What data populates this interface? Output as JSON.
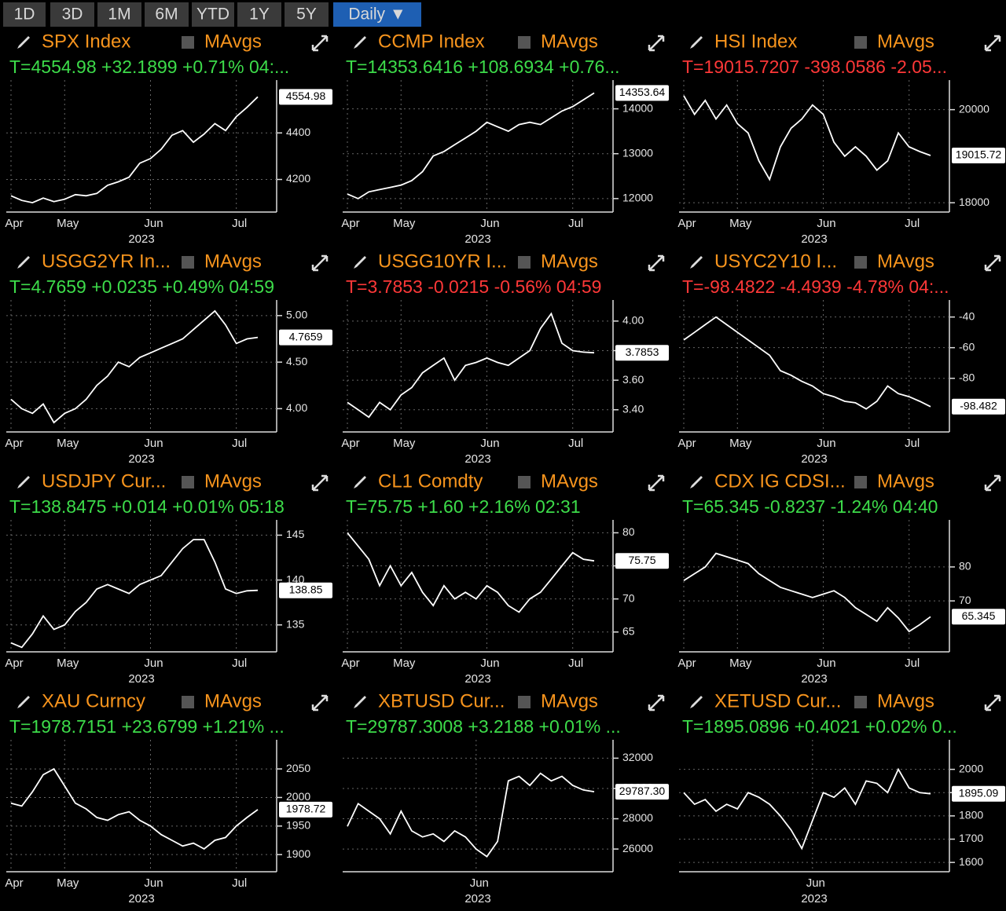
{
  "toolbar": {
    "buttons": [
      "1D",
      "3D",
      "1M",
      "6M",
      "YTD",
      "1Y",
      "5Y",
      "Daily ▼"
    ]
  },
  "panels": [
    {
      "title": "SPX Index",
      "mavgs": "MAvgs",
      "quote": "T=4554.98 +32.1899 +0.71% 04:...",
      "quote_color": "#3ddc4a",
      "chart_data": {
        "type": "line",
        "color": "#ffffff",
        "grid": true,
        "year": "2023",
        "categories": [
          "Apr",
          null,
          null,
          null,
          null,
          "May",
          null,
          null,
          null,
          null,
          null,
          null,
          null,
          "Jun",
          null,
          null,
          null,
          null,
          null,
          null,
          null,
          "Jul",
          null,
          null
        ],
        "values": [
          4130,
          4110,
          4100,
          4120,
          4105,
          4115,
          4135,
          4130,
          4140,
          4175,
          4190,
          4210,
          4270,
          4290,
          4330,
          4390,
          4410,
          4360,
          4395,
          4440,
          4410,
          4470,
          4510,
          4554.98
        ],
        "last_label": "4554.98",
        "ylim": [
          4060,
          4600
        ],
        "yticks": [
          4200,
          4400
        ]
      }
    },
    {
      "title": "CCMP Index",
      "mavgs": "MAvgs",
      "quote": "T=14353.6416 +108.6934 +0.76...",
      "quote_color": "#3ddc4a",
      "chart_data": {
        "type": "line",
        "color": "#ffffff",
        "grid": true,
        "year": "2023",
        "categories": [
          "Apr",
          null,
          null,
          null,
          null,
          "May",
          null,
          null,
          null,
          null,
          null,
          null,
          null,
          "Jun",
          null,
          null,
          null,
          null,
          null,
          null,
          null,
          "Jul",
          null,
          null
        ],
        "values": [
          12100,
          12000,
          12150,
          12200,
          12250,
          12300,
          12400,
          12600,
          12950,
          13050,
          13200,
          13350,
          13500,
          13700,
          13600,
          13500,
          13650,
          13700,
          13650,
          13800,
          13950,
          14050,
          14200,
          14353.64
        ],
        "last_label": "14353.64",
        "ylim": [
          11700,
          14500
        ],
        "yticks": [
          12000,
          13000,
          14000
        ]
      }
    },
    {
      "title": "HSI Index",
      "mavgs": "MAvgs",
      "quote": "T=19015.7207 -398.0586 -2.05...",
      "quote_color": "#ff3838",
      "chart_data": {
        "type": "line",
        "color": "#ffffff",
        "grid": true,
        "year": "2023",
        "categories": [
          "Apr",
          null,
          null,
          null,
          null,
          "May",
          null,
          null,
          null,
          null,
          null,
          null,
          null,
          "Jun",
          null,
          null,
          null,
          null,
          null,
          null,
          null,
          "Jul",
          null,
          null
        ],
        "values": [
          20300,
          19900,
          20200,
          19800,
          20100,
          19700,
          19500,
          18900,
          18500,
          19200,
          19600,
          19800,
          20100,
          19900,
          19300,
          19000,
          19200,
          19000,
          18700,
          18900,
          19500,
          19200,
          19100,
          19015.72
        ],
        "last_label": "19015.72",
        "ylim": [
          17800,
          20500
        ],
        "yticks": [
          18000,
          20000
        ]
      }
    },
    {
      "title": "USGG2YR In...",
      "mavgs": "MAvgs",
      "quote": "T=4.7659 +0.0235 +0.49% 04:59",
      "quote_color": "#3ddc4a",
      "chart_data": {
        "type": "line",
        "color": "#ffffff",
        "grid": true,
        "year": "2023",
        "categories": [
          "Apr",
          null,
          null,
          null,
          null,
          "May",
          null,
          null,
          null,
          null,
          null,
          null,
          null,
          "Jun",
          null,
          null,
          null,
          null,
          null,
          null,
          null,
          "Jul",
          null,
          null
        ],
        "values": [
          4.1,
          4.0,
          3.95,
          4.05,
          3.85,
          3.95,
          4.0,
          4.1,
          4.25,
          4.35,
          4.5,
          4.45,
          4.55,
          4.6,
          4.65,
          4.7,
          4.75,
          4.85,
          4.95,
          5.05,
          4.9,
          4.7,
          4.75,
          4.7659
        ],
        "last_label": "4.7659",
        "ylim": [
          3.75,
          5.1
        ],
        "yticks": [
          {
            "value": 4,
            "label": "4.00"
          },
          {
            "value": 4.5,
            "label": "4.50"
          },
          {
            "value": 5,
            "label": "5.00"
          }
        ]
      }
    },
    {
      "title": "USGG10YR I...",
      "mavgs": "MAvgs",
      "quote": "T=3.7853 -0.0215 -0.56% 04:59",
      "quote_color": "#ff3838",
      "chart_data": {
        "type": "line",
        "color": "#ffffff",
        "grid": true,
        "year": "2023",
        "categories": [
          "Apr",
          null,
          null,
          null,
          null,
          "May",
          null,
          null,
          null,
          null,
          null,
          null,
          null,
          "Jun",
          null,
          null,
          null,
          null,
          null,
          null,
          null,
          "Jul",
          null,
          null
        ],
        "values": [
          3.45,
          3.4,
          3.35,
          3.45,
          3.4,
          3.5,
          3.55,
          3.65,
          3.7,
          3.75,
          3.6,
          3.7,
          3.72,
          3.75,
          3.72,
          3.7,
          3.75,
          3.8,
          3.95,
          4.05,
          3.85,
          3.8,
          3.79,
          3.7853
        ],
        "last_label": "3.7853",
        "ylim": [
          3.25,
          4.1
        ],
        "yticks": [
          {
            "value": 3.4,
            "label": "3.40"
          },
          {
            "value": 3.6,
            "label": "3.60"
          },
          {
            "value": 3.8,
            "label": "3.80"
          },
          {
            "value": 4,
            "label": "4.00"
          }
        ]
      }
    },
    {
      "title": "USYC2Y10 I...",
      "mavgs": "MAvgs",
      "quote": "T=-98.4822 -4.4939 -4.78% 04:...",
      "quote_color": "#ff3838",
      "chart_data": {
        "type": "line",
        "color": "#ffffff",
        "grid": true,
        "year": "2023",
        "categories": [
          "Apr",
          null,
          null,
          null,
          null,
          "May",
          null,
          null,
          null,
          null,
          null,
          null,
          null,
          "Jun",
          null,
          null,
          null,
          null,
          null,
          null,
          null,
          "Jul",
          null,
          null
        ],
        "values": [
          -55,
          -50,
          -45,
          -40,
          -45,
          -50,
          -55,
          -60,
          -65,
          -75,
          -78,
          -82,
          -85,
          -90,
          -92,
          -95,
          -96,
          -100,
          -95,
          -85,
          -90,
          -92,
          -95,
          -98.4822
        ],
        "last_label": "-98.482",
        "ylim": [
          -115,
          -33
        ],
        "yticks": [
          -80,
          -60,
          -40
        ]
      }
    },
    {
      "title": "USDJPY Cur...",
      "mavgs": "MAvgs",
      "quote": "T=138.8475 +0.014 +0.01% 05:18",
      "quote_color": "#3ddc4a",
      "chart_data": {
        "type": "line",
        "color": "#ffffff",
        "grid": true,
        "year": "2023",
        "categories": [
          "Apr",
          null,
          null,
          null,
          null,
          "May",
          null,
          null,
          null,
          null,
          null,
          null,
          null,
          "Jun",
          null,
          null,
          null,
          null,
          null,
          null,
          null,
          "Jul",
          null,
          null
        ],
        "values": [
          133,
          132.5,
          134,
          136,
          134.5,
          135,
          136.5,
          137.5,
          139,
          139.5,
          139,
          138.5,
          139.5,
          140,
          140.5,
          142,
          143.5,
          144.5,
          144.5,
          142,
          139,
          138.5,
          138.8,
          138.8475
        ],
        "last_label": "138.85",
        "ylim": [
          132,
          146
        ],
        "yticks": [
          135,
          140,
          145
        ]
      }
    },
    {
      "title": "CL1 Comdty",
      "mavgs": "MAvgs",
      "quote": "T=75.75 +1.60 +2.16% 02:31",
      "quote_color": "#3ddc4a",
      "chart_data": {
        "type": "line",
        "color": "#ffffff",
        "grid": true,
        "year": "2023",
        "categories": [
          "Apr",
          null,
          null,
          null,
          null,
          "May",
          null,
          null,
          null,
          null,
          null,
          null,
          null,
          "Jun",
          null,
          null,
          null,
          null,
          null,
          null,
          null,
          "Jul",
          null,
          null
        ],
        "values": [
          80,
          78,
          76,
          72,
          75,
          72,
          74,
          71,
          69,
          72,
          70,
          71,
          70,
          72,
          71,
          69,
          68,
          70,
          71,
          73,
          75,
          77,
          76,
          75.75
        ],
        "last_label": "75.75",
        "ylim": [
          62,
          81
        ],
        "yticks": [
          65,
          70,
          75,
          80
        ]
      }
    },
    {
      "title": "CDX IG CDSI...",
      "mavgs": "MAvgs",
      "quote": "T=65.345 -0.8237 -1.24% 04:40",
      "quote_color": "#3ddc4a",
      "chart_data": {
        "type": "line",
        "color": "#ffffff",
        "grid": true,
        "year": "2023",
        "categories": [
          "Apr",
          null,
          null,
          null,
          null,
          "May",
          null,
          null,
          null,
          null,
          null,
          null,
          null,
          "Jun",
          null,
          null,
          null,
          null,
          null,
          null,
          null,
          "Jul",
          null,
          null
        ],
        "values": [
          76,
          78,
          80,
          84,
          83,
          82,
          81,
          78,
          76,
          74,
          73,
          72,
          71,
          72,
          73,
          71,
          68,
          66,
          64,
          68,
          65,
          61,
          63,
          65.345
        ],
        "last_label": "65.345",
        "ylim": [
          55,
          92
        ],
        "yticks": [
          70,
          80
        ]
      }
    },
    {
      "title": "XAU Curncy",
      "mavgs": "MAvgs",
      "quote": "T=1978.7151 +23.6799 +1.21% ...",
      "quote_color": "#3ddc4a",
      "chart_data": {
        "type": "line",
        "color": "#ffffff",
        "grid": true,
        "year": "2023",
        "categories": [
          "Apr",
          null,
          null,
          null,
          null,
          "May",
          null,
          null,
          null,
          null,
          null,
          null,
          null,
          "Jun",
          null,
          null,
          null,
          null,
          null,
          null,
          null,
          "Jul",
          null,
          null
        ],
        "values": [
          1990,
          1985,
          2010,
          2040,
          2050,
          2020,
          1990,
          1980,
          1965,
          1960,
          1970,
          1975,
          1960,
          1950,
          1935,
          1925,
          1915,
          1920,
          1910,
          1925,
          1930,
          1950,
          1965,
          1978.7151
        ],
        "last_label": "1978.72",
        "ylim": [
          1870,
          2090
        ],
        "yticks": [
          1900,
          1950,
          2000,
          2050
        ]
      }
    },
    {
      "title": "XBTUSD Cur...",
      "mavgs": "MAvgs",
      "quote": "T=29787.3008 +3.2188 +0.01% ...",
      "quote_color": "#3ddc4a",
      "chart_data": {
        "type": "line",
        "color": "#ffffff",
        "grid": true,
        "year": "2023",
        "categories": [
          null,
          null,
          null,
          null,
          null,
          null,
          null,
          null,
          null,
          null,
          null,
          null,
          "Jun",
          null,
          null,
          null,
          null,
          null,
          null,
          null,
          null,
          null,
          null,
          null
        ],
        "values": [
          27500,
          29000,
          28500,
          28000,
          27000,
          28500,
          27200,
          26800,
          27000,
          26500,
          27200,
          26800,
          26000,
          25500,
          26500,
          30500,
          30800,
          30200,
          31000,
          30500,
          30800,
          30200,
          29900,
          29787.3008
        ],
        "last_label": "29787.30",
        "ylim": [
          24500,
          32800
        ],
        "yticks": [
          26000,
          28000,
          30000,
          32000
        ]
      }
    },
    {
      "title": "XETUSD Cur...",
      "mavgs": "MAvgs",
      "quote": "T=1895.0896 +0.4021 +0.02% 0...",
      "quote_color": "#3ddc4a",
      "chart_data": {
        "type": "line",
        "color": "#ffffff",
        "grid": true,
        "year": "2023",
        "categories": [
          null,
          null,
          null,
          null,
          null,
          null,
          null,
          null,
          null,
          null,
          null,
          null,
          "Jun",
          null,
          null,
          null,
          null,
          null,
          null,
          null,
          null,
          null,
          null,
          null
        ],
        "values": [
          1900,
          1850,
          1870,
          1820,
          1850,
          1830,
          1900,
          1880,
          1850,
          1800,
          1740,
          1660,
          1780,
          1900,
          1880,
          1920,
          1850,
          1950,
          1940,
          1900,
          2000,
          1920,
          1900,
          1895.0896
        ],
        "last_label": "1895.09",
        "ylim": [
          1560,
          2100
        ],
        "yticks": [
          1600,
          1700,
          1800,
          1900,
          2000
        ]
      }
    }
  ]
}
